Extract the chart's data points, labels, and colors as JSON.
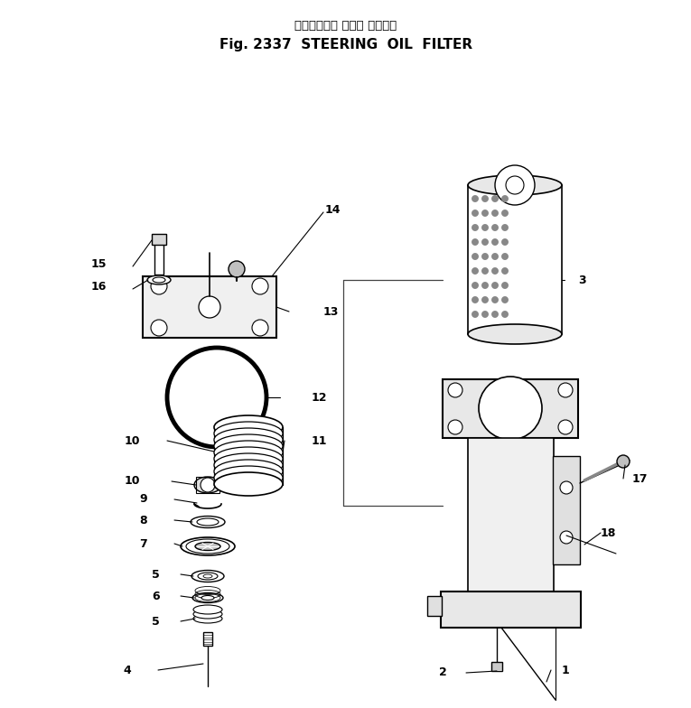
{
  "title_japanese": "ステアリング オイル フィルタ",
  "title_english": "Fig. 2337  STEERING  OIL  FILTER",
  "bg_color": "#ffffff",
  "lc": "#000000",
  "fig_width": 7.65,
  "fig_height": 7.84,
  "dpi": 100
}
